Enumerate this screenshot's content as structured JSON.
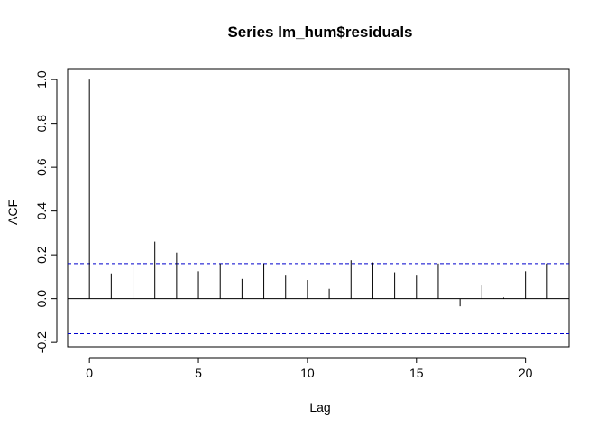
{
  "chart_data": {
    "type": "bar",
    "title": "Series  lm_hum$residuals",
    "xlabel": "Lag",
    "ylabel": "ACF",
    "xlim": [
      -1,
      22
    ],
    "ylim": [
      -0.22,
      1.05
    ],
    "x_ticks": [
      0,
      5,
      10,
      15,
      20
    ],
    "y_ticks": [
      -0.2,
      0.0,
      0.2,
      0.4,
      0.6,
      0.8,
      1.0
    ],
    "x_tick_labels": [
      "0",
      "5",
      "10",
      "15",
      "20"
    ],
    "y_tick_labels": [
      "-0.2",
      "0.0",
      "0.2",
      "0.4",
      "0.6",
      "0.8",
      "1.0"
    ],
    "lags": [
      0,
      1,
      2,
      3,
      4,
      5,
      6,
      7,
      8,
      9,
      10,
      11,
      12,
      13,
      14,
      15,
      16,
      17,
      18,
      19,
      20,
      21
    ],
    "acf": [
      1.0,
      0.115,
      0.145,
      0.26,
      0.21,
      0.125,
      0.16,
      0.09,
      0.16,
      0.105,
      0.085,
      0.045,
      0.175,
      0.165,
      0.12,
      0.105,
      0.16,
      -0.035,
      0.06,
      0.005,
      0.125,
      0.16
    ],
    "confidence_bound": 0.16,
    "bar_color": "#000000",
    "ci_color": "#0000cd",
    "zero_line_color": "#000000",
    "grid": false
  }
}
